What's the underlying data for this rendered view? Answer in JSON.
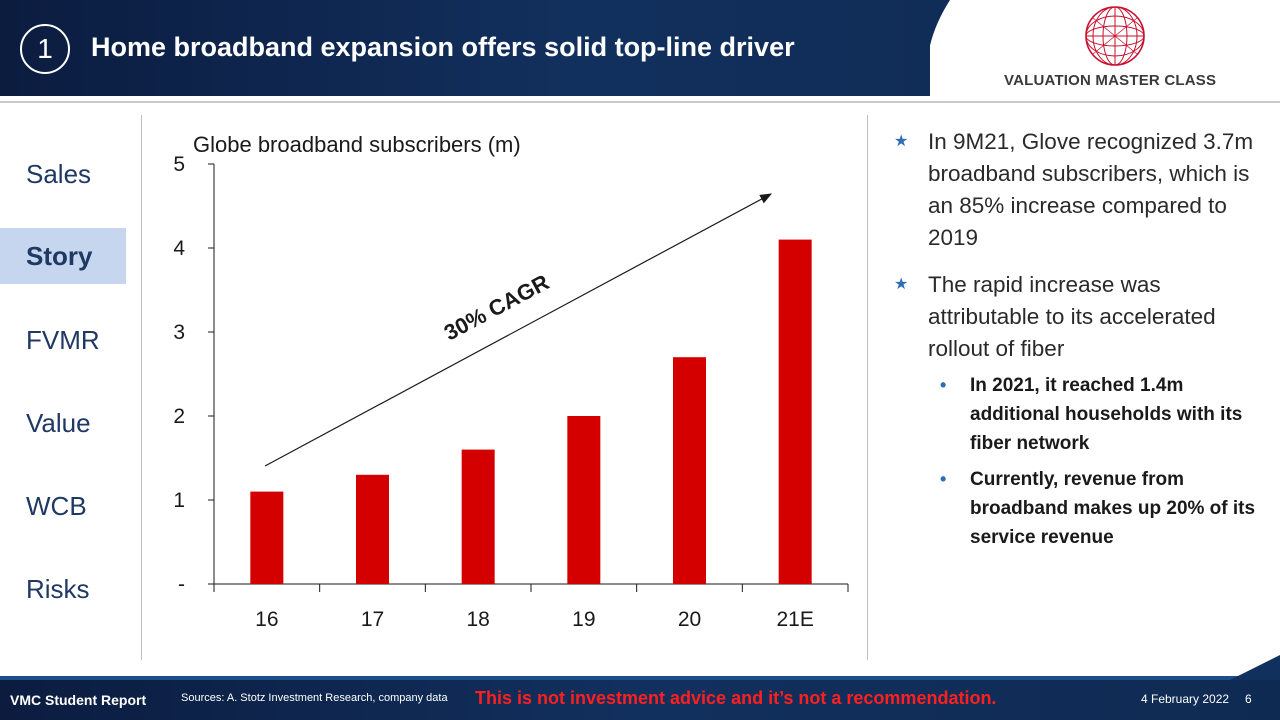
{
  "header": {
    "slide_number": "1",
    "title": "Home broadband expansion offers solid top-line driver",
    "logo_text": "VALUATION MASTER CLASS"
  },
  "sidebar": {
    "items": [
      {
        "label": "Sales",
        "active": false
      },
      {
        "label": "Story",
        "active": true
      },
      {
        "label": "FVMR",
        "active": false
      },
      {
        "label": "Value",
        "active": false
      },
      {
        "label": "WCB",
        "active": false
      },
      {
        "label": "Risks",
        "active": false
      }
    ]
  },
  "chart_data": {
    "type": "bar",
    "title": "Globe broadband subscribers (m)",
    "categories": [
      "16",
      "17",
      "18",
      "19",
      "20",
      "21E"
    ],
    "values": [
      1.1,
      1.3,
      1.6,
      2.0,
      2.7,
      4.1
    ],
    "ylim": [
      0,
      5
    ],
    "yticks": [
      0,
      1,
      2,
      3,
      4,
      5
    ],
    "ytick_labels": [
      "-",
      "1",
      "2",
      "3",
      "4",
      "5"
    ],
    "bar_color": "#d40000",
    "grid": false,
    "annotation": "30% CAGR"
  },
  "bullets": {
    "items": [
      {
        "text": "In 9M21, Glove recognized 3.7m broadband subscribers, which is an 85% increase compared to 2019"
      },
      {
        "text": "The rapid increase was attributable to its accelerated rollout of fiber"
      }
    ],
    "subitems": [
      {
        "text": "In 2021, it reached 1.4m additional households with its fiber network"
      },
      {
        "text": "Currently, revenue from broadband makes up 20% of its service revenue"
      }
    ]
  },
  "footer": {
    "label": "VMC Student Report",
    "source": "Sources: A. Stotz Investment Research, company data",
    "disclaimer": "This is not investment advice and it’s not a recommendation.",
    "date": "4 February 2022",
    "page": "6"
  },
  "colors": {
    "header_bg": "#0f2a52",
    "accent": "#2f6db5",
    "nav_text": "#1f3864",
    "nav_active_bg": "#c5d6ee",
    "disclaimer": "#ff1f1f"
  }
}
